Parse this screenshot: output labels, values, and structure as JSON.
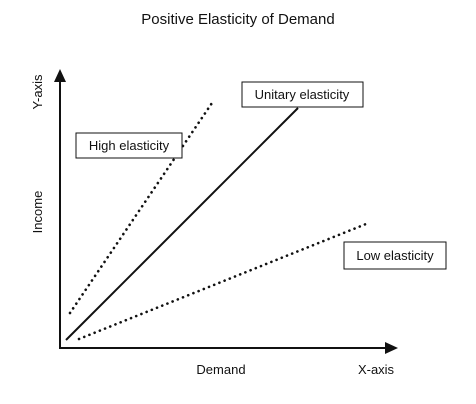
{
  "title": "Positive Elasticity of Demand",
  "axes": {
    "y_axis_name": "Y-axis",
    "y_axis_label": "Income",
    "x_axis_label": "Demand",
    "x_axis_name": "X-axis"
  },
  "lines": {
    "high": {
      "label": "High elasticity",
      "style": "dotted"
    },
    "unitary": {
      "label": "Unitary elasticity",
      "style": "solid"
    },
    "low": {
      "label": "Low elasticity",
      "style": "dotted"
    }
  },
  "colors": {
    "ink": "#111111",
    "background": "#ffffff"
  }
}
